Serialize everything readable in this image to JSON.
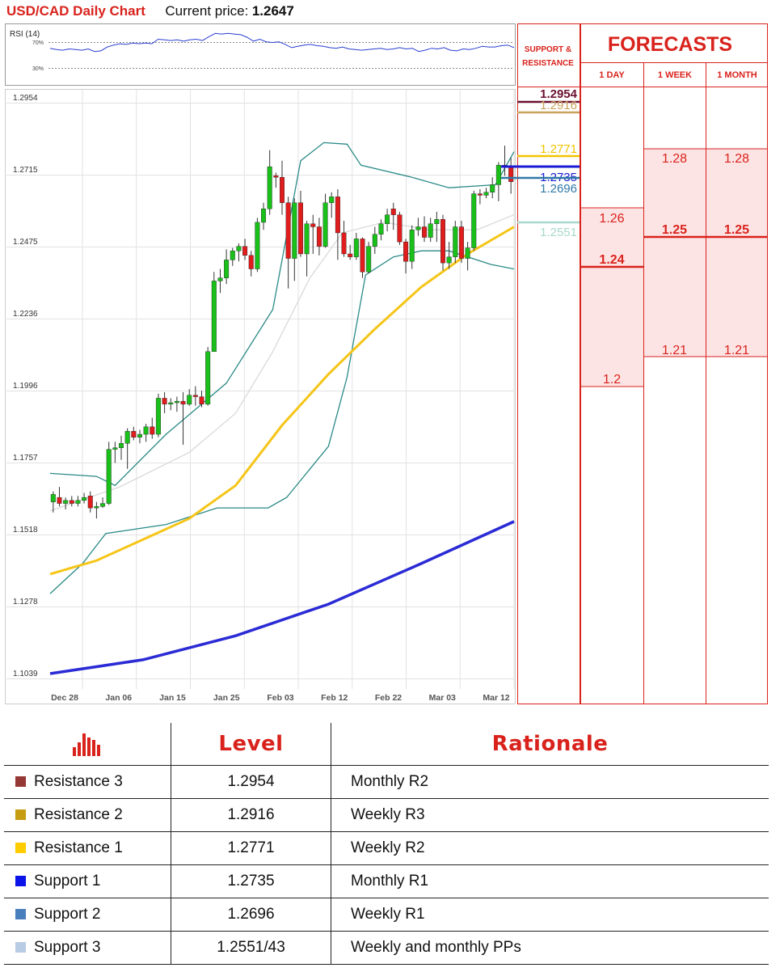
{
  "header": {
    "title": "USD/CAD Daily Chart",
    "price_label": "Current price:",
    "price_value": "1.2647"
  },
  "rsi": {
    "label": "RSI (14)",
    "levels": [
      "70%",
      "30%"
    ]
  },
  "colors": {
    "r3": "#6b1030",
    "r2": "#c8a35a",
    "r1": "#f2c400",
    "s1": "#1a1ad6",
    "s2": "#2f79a8",
    "s3": "#a8d8cc",
    "up": "#19c019",
    "down": "#e01c1c",
    "ma_short": "#f5c518",
    "ma_long": "#2b2bd6",
    "band": "#2a8a87",
    "accent": "#d9221c"
  },
  "chart_data": {
    "type": "line",
    "title": "USD/CAD Daily Chart",
    "y_ticks": [
      "1.2954",
      "1.2715",
      "1.2475",
      "1.2236",
      "1.1996",
      "1.1757",
      "1.1518",
      "1.1278",
      "1.1039"
    ],
    "x_ticks": [
      "Dec 28",
      "Jan 06",
      "Jan 15",
      "Jan 25",
      "Feb 03",
      "Feb 12",
      "Feb 22",
      "Mar 03",
      "Mar 12"
    ],
    "ylim": [
      1.1039,
      1.2954
    ],
    "candles": [
      {
        "o": 1.161,
        "h": 1.1645,
        "l": 1.1575,
        "c": 1.1635
      },
      {
        "o": 1.1625,
        "h": 1.166,
        "l": 1.1595,
        "c": 1.1605
      },
      {
        "o": 1.1605,
        "h": 1.1625,
        "l": 1.1585,
        "c": 1.1615
      },
      {
        "o": 1.1615,
        "h": 1.163,
        "l": 1.1595,
        "c": 1.1605
      },
      {
        "o": 1.1605,
        "h": 1.163,
        "l": 1.1595,
        "c": 1.1615
      },
      {
        "o": 1.1615,
        "h": 1.164,
        "l": 1.1605,
        "c": 1.1625
      },
      {
        "o": 1.163,
        "h": 1.1645,
        "l": 1.1575,
        "c": 1.159
      },
      {
        "o": 1.159,
        "h": 1.161,
        "l": 1.1555,
        "c": 1.1595
      },
      {
        "o": 1.1595,
        "h": 1.1625,
        "l": 1.159,
        "c": 1.1605
      },
      {
        "o": 1.1605,
        "h": 1.181,
        "l": 1.16,
        "c": 1.1785
      },
      {
        "o": 1.1785,
        "h": 1.181,
        "l": 1.174,
        "c": 1.179
      },
      {
        "o": 1.179,
        "h": 1.183,
        "l": 1.175,
        "c": 1.1805
      },
      {
        "o": 1.1805,
        "h": 1.1855,
        "l": 1.172,
        "c": 1.1845
      },
      {
        "o": 1.1845,
        "h": 1.186,
        "l": 1.1815,
        "c": 1.1825
      },
      {
        "o": 1.1825,
        "h": 1.185,
        "l": 1.1805,
        "c": 1.1835
      },
      {
        "o": 1.1835,
        "h": 1.187,
        "l": 1.181,
        "c": 1.186
      },
      {
        "o": 1.186,
        "h": 1.189,
        "l": 1.182,
        "c": 1.1835
      },
      {
        "o": 1.1835,
        "h": 1.197,
        "l": 1.1825,
        "c": 1.1955
      },
      {
        "o": 1.1955,
        "h": 1.1975,
        "l": 1.1905,
        "c": 1.1935
      },
      {
        "o": 1.1935,
        "h": 1.1955,
        "l": 1.1915,
        "c": 1.194
      },
      {
        "o": 1.194,
        "h": 1.196,
        "l": 1.191,
        "c": 1.1945
      },
      {
        "o": 1.1945,
        "h": 1.1975,
        "l": 1.18,
        "c": 1.1935
      },
      {
        "o": 1.1935,
        "h": 1.1985,
        "l": 1.193,
        "c": 1.1965
      },
      {
        "o": 1.1965,
        "h": 1.1995,
        "l": 1.193,
        "c": 1.196
      },
      {
        "o": 1.196,
        "h": 1.198,
        "l": 1.1925,
        "c": 1.1935
      },
      {
        "o": 1.1935,
        "h": 1.2125,
        "l": 1.193,
        "c": 1.211
      },
      {
        "o": 1.211,
        "h": 1.2375,
        "l": 1.211,
        "c": 1.2345
      },
      {
        "o": 1.2345,
        "h": 1.2385,
        "l": 1.2305,
        "c": 1.2355
      },
      {
        "o": 1.2355,
        "h": 1.245,
        "l": 1.2335,
        "c": 1.2415
      },
      {
        "o": 1.2415,
        "h": 1.2455,
        "l": 1.2395,
        "c": 1.2445
      },
      {
        "o": 1.2445,
        "h": 1.247,
        "l": 1.241,
        "c": 1.246
      },
      {
        "o": 1.246,
        "h": 1.2485,
        "l": 1.2415,
        "c": 1.243
      },
      {
        "o": 1.243,
        "h": 1.2445,
        "l": 1.236,
        "c": 1.2385
      },
      {
        "o": 1.2385,
        "h": 1.2555,
        "l": 1.2375,
        "c": 1.254
      },
      {
        "o": 1.254,
        "h": 1.2605,
        "l": 1.2515,
        "c": 1.2585
      },
      {
        "o": 1.2585,
        "h": 1.278,
        "l": 1.2565,
        "c": 1.2725
      },
      {
        "o": 1.2695,
        "h": 1.2705,
        "l": 1.2655,
        "c": 1.269
      },
      {
        "o": 1.269,
        "h": 1.2745,
        "l": 1.2565,
        "c": 1.2605
      },
      {
        "o": 1.2605,
        "h": 1.2625,
        "l": 1.232,
        "c": 1.242
      },
      {
        "o": 1.242,
        "h": 1.262,
        "l": 1.2345,
        "c": 1.2605
      },
      {
        "o": 1.2605,
        "h": 1.2645,
        "l": 1.2425,
        "c": 1.2435
      },
      {
        "o": 1.2435,
        "h": 1.2545,
        "l": 1.236,
        "c": 1.2535
      },
      {
        "o": 1.2535,
        "h": 1.2565,
        "l": 1.2435,
        "c": 1.2525
      },
      {
        "o": 1.2525,
        "h": 1.2555,
        "l": 1.243,
        "c": 1.246
      },
      {
        "o": 1.246,
        "h": 1.2635,
        "l": 1.2455,
        "c": 1.2605
      },
      {
        "o": 1.2605,
        "h": 1.264,
        "l": 1.2555,
        "c": 1.2625
      },
      {
        "o": 1.2625,
        "h": 1.265,
        "l": 1.2415,
        "c": 1.2505
      },
      {
        "o": 1.2505,
        "h": 1.2545,
        "l": 1.2425,
        "c": 1.2435
      },
      {
        "o": 1.2435,
        "h": 1.2465,
        "l": 1.2415,
        "c": 1.2425
      },
      {
        "o": 1.2425,
        "h": 1.2505,
        "l": 1.2415,
        "c": 1.2485
      },
      {
        "o": 1.2485,
        "h": 1.249,
        "l": 1.2355,
        "c": 1.2375
      },
      {
        "o": 1.2375,
        "h": 1.2475,
        "l": 1.237,
        "c": 1.246
      },
      {
        "o": 1.246,
        "h": 1.2525,
        "l": 1.2435,
        "c": 1.25
      },
      {
        "o": 1.25,
        "h": 1.255,
        "l": 1.248,
        "c": 1.2535
      },
      {
        "o": 1.2535,
        "h": 1.2585,
        "l": 1.251,
        "c": 1.2565
      },
      {
        "o": 1.2585,
        "h": 1.2605,
        "l": 1.2515,
        "c": 1.2565
      },
      {
        "o": 1.2565,
        "h": 1.2575,
        "l": 1.2465,
        "c": 1.2475
      },
      {
        "o": 1.2475,
        "h": 1.2485,
        "l": 1.237,
        "c": 1.241
      },
      {
        "o": 1.241,
        "h": 1.253,
        "l": 1.2385,
        "c": 1.2515
      },
      {
        "o": 1.2515,
        "h": 1.2555,
        "l": 1.2495,
        "c": 1.2525
      },
      {
        "o": 1.2525,
        "h": 1.256,
        "l": 1.2475,
        "c": 1.249
      },
      {
        "o": 1.249,
        "h": 1.2555,
        "l": 1.2475,
        "c": 1.2535
      },
      {
        "o": 1.2535,
        "h": 1.2575,
        "l": 1.2475,
        "c": 1.255
      },
      {
        "o": 1.255,
        "h": 1.2565,
        "l": 1.238,
        "c": 1.2405
      },
      {
        "o": 1.2405,
        "h": 1.2475,
        "l": 1.2385,
        "c": 1.2425
      },
      {
        "o": 1.2425,
        "h": 1.2545,
        "l": 1.2405,
        "c": 1.2525
      },
      {
        "o": 1.2525,
        "h": 1.2545,
        "l": 1.2405,
        "c": 1.242
      },
      {
        "o": 1.242,
        "h": 1.2475,
        "l": 1.238,
        "c": 1.2455
      },
      {
        "o": 1.2455,
        "h": 1.2645,
        "l": 1.2445,
        "c": 1.2635
      },
      {
        "o": 1.2635,
        "h": 1.265,
        "l": 1.26,
        "c": 1.263
      },
      {
        "o": 1.263,
        "h": 1.2655,
        "l": 1.262,
        "c": 1.264
      },
      {
        "o": 1.264,
        "h": 1.269,
        "l": 1.262,
        "c": 1.2665
      },
      {
        "o": 1.2665,
        "h": 1.274,
        "l": 1.261,
        "c": 1.273
      },
      {
        "o": 1.273,
        "h": 1.2795,
        "l": 1.2695,
        "c": 1.2725
      },
      {
        "o": 1.2725,
        "h": 1.2755,
        "l": 1.2635,
        "c": 1.2675
      }
    ],
    "ma_short": [
      [
        0,
        1.137
      ],
      [
        0.1,
        1.1415
      ],
      [
        0.2,
        1.1485
      ],
      [
        0.3,
        1.1555
      ],
      [
        0.4,
        1.1665
      ],
      [
        0.5,
        1.1865
      ],
      [
        0.6,
        1.2035
      ],
      [
        0.7,
        1.2185
      ],
      [
        0.8,
        1.2325
      ],
      [
        0.9,
        1.2435
      ],
      [
        1.0,
        1.2525
      ]
    ],
    "ma_long": [
      [
        0,
        1.1039
      ],
      [
        0.2,
        1.1085
      ],
      [
        0.4,
        1.1165
      ],
      [
        0.6,
        1.127
      ],
      [
        0.8,
        1.1405
      ],
      [
        1.0,
        1.1545
      ]
    ],
    "band_upper": [
      [
        0,
        1.1705
      ],
      [
        0.1,
        1.1695
      ],
      [
        0.14,
        1.1665
      ],
      [
        0.25,
        1.1835
      ],
      [
        0.38,
        1.2005
      ],
      [
        0.48,
        1.225
      ],
      [
        0.54,
        1.2745
      ],
      [
        0.59,
        1.2805
      ],
      [
        0.64,
        1.28
      ],
      [
        0.67,
        1.273
      ],
      [
        0.78,
        1.269
      ],
      [
        0.86,
        1.2655
      ],
      [
        0.96,
        1.2665
      ],
      [
        1.0,
        1.2775
      ]
    ],
    "band_lower": [
      [
        0,
        1.1305
      ],
      [
        0.07,
        1.1405
      ],
      [
        0.12,
        1.1505
      ],
      [
        0.25,
        1.1535
      ],
      [
        0.36,
        1.159
      ],
      [
        0.47,
        1.159
      ],
      [
        0.51,
        1.1625
      ],
      [
        0.6,
        1.1795
      ],
      [
        0.64,
        1.2025
      ],
      [
        0.68,
        1.2365
      ],
      [
        0.74,
        1.2425
      ],
      [
        0.8,
        1.2445
      ],
      [
        0.86,
        1.2445
      ],
      [
        0.95,
        1.24
      ],
      [
        1.0,
        1.2385
      ]
    ],
    "band_mid": [
      [
        0,
        1.158
      ],
      [
        0.15,
        1.166
      ],
      [
        0.3,
        1.1775
      ],
      [
        0.4,
        1.1905
      ],
      [
        0.48,
        1.211
      ],
      [
        0.56,
        1.2355
      ],
      [
        0.63,
        1.2505
      ],
      [
        0.72,
        1.254
      ],
      [
        0.82,
        1.2515
      ],
      [
        0.92,
        1.2515
      ],
      [
        1.0,
        1.2565
      ]
    ],
    "rsi_values": [
      61,
      59,
      58,
      60,
      59,
      58,
      60,
      56,
      57,
      63,
      66,
      68,
      67,
      69,
      68,
      69,
      68,
      75,
      74,
      73,
      74,
      72,
      74,
      75,
      73,
      79,
      84,
      83,
      84,
      83,
      82,
      78,
      72,
      75,
      71,
      70,
      71,
      67,
      62,
      64,
      66,
      67,
      65,
      64,
      62,
      61,
      63,
      60,
      59,
      58,
      59,
      60,
      61,
      59,
      60,
      62,
      60,
      61,
      56,
      58,
      61,
      60,
      62,
      58,
      57,
      60,
      59,
      61,
      64,
      63,
      63,
      65,
      66,
      62
    ],
    "levels": [
      {
        "name": "Resistance 3",
        "value": 1.2954,
        "label": "1.2954"
      },
      {
        "name": "Resistance 2",
        "value": 1.2916,
        "label": "1.2916"
      },
      {
        "name": "Resistance 1",
        "value": 1.2771,
        "label": "1.2771"
      },
      {
        "name": "Support 1",
        "value": 1.2735,
        "label": "1.2735"
      },
      {
        "name": "Support 2",
        "value": 1.2696,
        "label": "1.2696"
      },
      {
        "name": "Support 3",
        "value": 1.2551,
        "label": "1.2551"
      }
    ],
    "forecasts": {
      "day": [
        {
          "value": 1.26,
          "label": "1.26",
          "bold": false
        },
        {
          "value": 1.24,
          "label": "1.24",
          "bold": true
        },
        {
          "value": 1.2,
          "label": "1.2",
          "bold": false
        }
      ],
      "week": [
        {
          "value": 1.28,
          "label": "1.28",
          "bold": false
        },
        {
          "value": 1.25,
          "label": "1.25",
          "bold": true
        },
        {
          "value": 1.21,
          "label": "1.21",
          "bold": false
        }
      ],
      "month": [
        {
          "value": 1.28,
          "label": "1.28",
          "bold": false
        },
        {
          "value": 1.25,
          "label": "1.25",
          "bold": true
        },
        {
          "value": 1.21,
          "label": "1.21",
          "bold": false
        }
      ]
    }
  },
  "forecast_panel": {
    "title": "FORECASTS",
    "sr_label_1": "SUPPORT &",
    "sr_label_2": "RESISTANCE",
    "cols": [
      "1 DAY",
      "1 WEEK",
      "1 MONTH"
    ]
  },
  "table": {
    "headers": [
      "Level",
      "Rationale"
    ],
    "rows": [
      {
        "name": "Resistance 3",
        "level": "1.2954",
        "rationale": "Monthly R2",
        "color": "#953735"
      },
      {
        "name": "Resistance 2",
        "level": "1.2916",
        "rationale": "Weekly R3",
        "color": "#c69c13"
      },
      {
        "name": "Resistance 1",
        "level": "1.2771",
        "rationale": "Weekly R2",
        "color": "#ffcc00"
      },
      {
        "name": "Support 1",
        "level": "1.2735",
        "rationale": "Monthly R1",
        "color": "#0a14e8"
      },
      {
        "name": "Support 2",
        "level": "1.2696",
        "rationale": "Weekly R1",
        "color": "#4a7fbd"
      },
      {
        "name": "Support 3",
        "level": "1.2551/43",
        "rationale": "Weekly and monthly PPs",
        "color": "#b8cce4"
      }
    ]
  }
}
